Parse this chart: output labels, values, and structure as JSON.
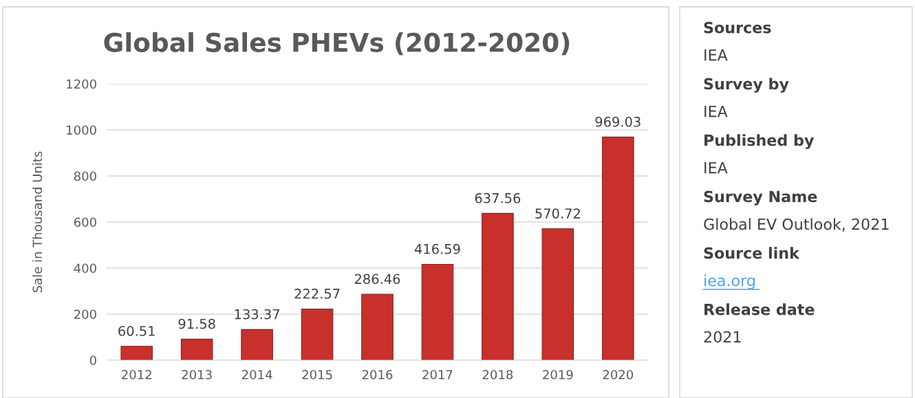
{
  "chart_data": {
    "type": "bar",
    "title": "Global Sales PHEVs (2012-2020)",
    "ylabel": "Sale in Thousand Units",
    "categories": [
      "2012",
      "2013",
      "2014",
      "2015",
      "2016",
      "2017",
      "2018",
      "2019",
      "2020"
    ],
    "values": [
      60.51,
      91.58,
      133.37,
      222.57,
      286.46,
      416.59,
      637.56,
      570.72,
      969.03
    ],
    "color": "#c8302c",
    "ylim": [
      0,
      1200
    ],
    "yticks": [
      0,
      200,
      400,
      600,
      800,
      1000,
      1200
    ],
    "grid": "y",
    "data_labels": true,
    "annotations": [
      "Sources",
      "IEA",
      "Survey by",
      "IEA",
      "Published by",
      "IEA",
      "Survey Name",
      "Global EV Outlook, 2021",
      "Source link",
      "iea.org",
      "Release date",
      "2021"
    ]
  }
}
